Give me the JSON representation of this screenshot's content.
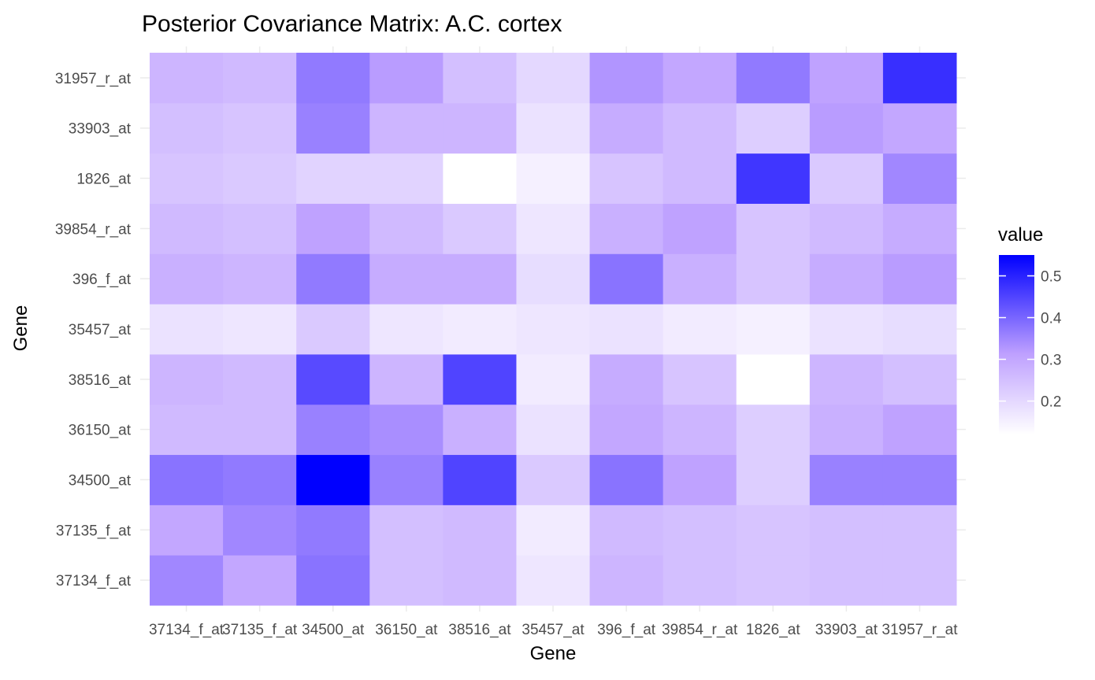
{
  "chart_data": {
    "type": "heatmap",
    "title": "Posterior Covariance Matrix: A.C. cortex",
    "xlabel": "Gene",
    "ylabel": "Gene",
    "x_categories": [
      "37134_f_at",
      "37135_f_at",
      "34500_at",
      "36150_at",
      "38516_at",
      "35457_at",
      "396_f_at",
      "39854_r_at",
      "1826_at",
      "33903_at",
      "31957_r_at"
    ],
    "y_categories": [
      "37134_f_at",
      "37135_f_at",
      "34500_at",
      "36150_at",
      "38516_at",
      "35457_at",
      "396_f_at",
      "39854_r_at",
      "1826_at",
      "33903_at",
      "31957_r_at"
    ],
    "values": [
      [
        0.35,
        0.3,
        0.38,
        0.25,
        0.26,
        0.17,
        0.27,
        0.25,
        0.24,
        0.25,
        0.25
      ],
      [
        0.3,
        0.35,
        0.37,
        0.25,
        0.26,
        0.16,
        0.26,
        0.25,
        0.24,
        0.25,
        0.25
      ],
      [
        0.38,
        0.37,
        0.55,
        0.36,
        0.45,
        0.23,
        0.38,
        0.31,
        0.22,
        0.36,
        0.36
      ],
      [
        0.26,
        0.26,
        0.36,
        0.34,
        0.28,
        0.18,
        0.3,
        0.27,
        0.22,
        0.28,
        0.31
      ],
      [
        0.27,
        0.26,
        0.44,
        0.27,
        0.45,
        0.16,
        0.29,
        0.24,
        0.12,
        0.27,
        0.25
      ],
      [
        0.18,
        0.17,
        0.23,
        0.17,
        0.16,
        0.17,
        0.18,
        0.16,
        0.15,
        0.18,
        0.19
      ],
      [
        0.28,
        0.27,
        0.37,
        0.29,
        0.29,
        0.19,
        0.38,
        0.28,
        0.24,
        0.29,
        0.32
      ],
      [
        0.26,
        0.25,
        0.31,
        0.26,
        0.23,
        0.17,
        0.28,
        0.31,
        0.24,
        0.26,
        0.29
      ],
      [
        0.24,
        0.23,
        0.21,
        0.21,
        0.12,
        0.15,
        0.24,
        0.26,
        0.47,
        0.23,
        0.35
      ],
      [
        0.25,
        0.24,
        0.36,
        0.27,
        0.27,
        0.18,
        0.29,
        0.26,
        0.22,
        0.32,
        0.3
      ],
      [
        0.27,
        0.26,
        0.37,
        0.32,
        0.25,
        0.2,
        0.33,
        0.3,
        0.37,
        0.31,
        0.48
      ]
    ],
    "legend": {
      "title": "value",
      "ticks": [
        0.2,
        0.3,
        0.4,
        0.5
      ],
      "tick_labels": [
        "0.2",
        "0.3",
        "0.4",
        "0.5"
      ],
      "range": [
        0.12,
        0.55
      ],
      "low_color": "#ffffff",
      "high_color": "#0000ff",
      "placement": "right"
    },
    "grid": true
  }
}
